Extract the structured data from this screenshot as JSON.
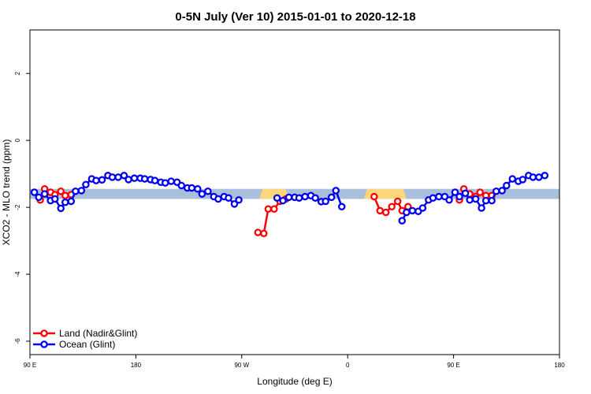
{
  "chart_data": {
    "type": "line",
    "title": "0-5N July (Ver 10)   2015-01-01 to 2020-12-18",
    "xlabel": "Longitude (deg E)",
    "ylabel": "XCO2 - MLO trend (ppm)",
    "xlim": [
      90,
      450
    ],
    "ylim": [
      -6.4,
      3.3
    ],
    "x_ticks": [
      {
        "value": 90,
        "label": "90 E"
      },
      {
        "value": 162,
        "label": "180"
      },
      {
        "value": 234,
        "label": "90 W"
      },
      {
        "value": 306,
        "label": "0"
      },
      {
        "value": 378,
        "label": "90 E"
      },
      {
        "value": 450,
        "label": "180"
      }
    ],
    "y_ticks": [
      {
        "value": 2,
        "label": "2"
      },
      {
        "value": 0,
        "label": "0"
      },
      {
        "value": -2,
        "label": "-2"
      },
      {
        "value": -4,
        "label": "-4"
      },
      {
        "value": -6,
        "label": "-6"
      }
    ],
    "reference_band": {
      "y_min": -1.75,
      "y_max": -1.45,
      "color": "#a9bfdc"
    },
    "land_markers": [
      {
        "x_min": 246,
        "x_max": 266,
        "color": "#fbd67b"
      },
      {
        "x_min": 317,
        "x_max": 346,
        "color": "#fbd67b"
      }
    ],
    "series": [
      {
        "name": "Land (Nadir&Glint)",
        "color": "#ff0000",
        "segments": [
          [
            [
              97,
              -1.78
            ],
            [
              100,
              -1.45
            ],
            [
              104,
              -1.55
            ],
            [
              107,
              -1.62
            ],
            [
              111,
              -1.52
            ],
            [
              114,
              -1.65
            ],
            [
              118,
              -1.62
            ]
          ],
          [
            [
              245,
              -2.75
            ],
            [
              249,
              -2.78
            ],
            [
              252,
              -2.05
            ],
            [
              256,
              -2.05
            ],
            [
              260,
              -1.82
            ],
            [
              264,
              -1.75
            ]
          ],
          [
            [
              324,
              -1.68
            ],
            [
              328,
              -2.1
            ],
            [
              332,
              -2.15
            ],
            [
              336,
              -1.98
            ],
            [
              340,
              -1.82
            ],
            [
              343,
              -2.1
            ],
            [
              347,
              -1.98
            ]
          ],
          [
            [
              382,
              -1.78
            ],
            [
              385,
              -1.45
            ],
            [
              389,
              -1.6
            ],
            [
              393,
              -1.68
            ],
            [
              396,
              -1.55
            ],
            [
              400,
              -1.65
            ],
            [
              404,
              -1.65
            ]
          ]
        ]
      },
      {
        "name": "Ocean (Glint)",
        "color": "#0000ee",
        "segments": [
          [
            [
              93,
              -1.55
            ],
            [
              96,
              -1.7
            ],
            [
              100,
              -1.6
            ],
            [
              104,
              -1.8
            ],
            [
              107,
              -1.75
            ],
            [
              111,
              -2.03
            ],
            [
              114,
              -1.85
            ],
            [
              118,
              -1.82
            ],
            [
              121,
              -1.52
            ],
            [
              125,
              -1.5
            ],
            [
              128,
              -1.32
            ],
            [
              132,
              -1.15
            ],
            [
              135,
              -1.2
            ],
            [
              139,
              -1.18
            ],
            [
              143,
              -1.05
            ],
            [
              146,
              -1.1
            ],
            [
              150,
              -1.1
            ],
            [
              154,
              -1.05
            ],
            [
              157,
              -1.17
            ],
            [
              161,
              -1.13
            ],
            [
              165,
              -1.13
            ],
            [
              168,
              -1.15
            ],
            [
              172,
              -1.17
            ],
            [
              175,
              -1.2
            ],
            [
              179,
              -1.25
            ],
            [
              182,
              -1.27
            ],
            [
              186,
              -1.22
            ],
            [
              190,
              -1.25
            ],
            [
              193,
              -1.35
            ],
            [
              197,
              -1.42
            ],
            [
              200,
              -1.42
            ],
            [
              204,
              -1.45
            ],
            [
              207,
              -1.6
            ],
            [
              211,
              -1.52
            ],
            [
              215,
              -1.68
            ],
            [
              218,
              -1.75
            ],
            [
              222,
              -1.68
            ],
            [
              225,
              -1.72
            ],
            [
              229,
              -1.9
            ],
            [
              232,
              -1.78
            ]
          ],
          [
            [
              258,
              -1.72
            ],
            [
              262,
              -1.8
            ],
            [
              266,
              -1.7
            ],
            [
              270,
              -1.7
            ],
            [
              273,
              -1.72
            ],
            [
              277,
              -1.68
            ],
            [
              281,
              -1.65
            ],
            [
              284,
              -1.72
            ],
            [
              288,
              -1.83
            ],
            [
              291,
              -1.82
            ],
            [
              295,
              -1.7
            ],
            [
              298,
              -1.5
            ],
            [
              302,
              -1.98
            ]
          ],
          [
            [
              343,
              -2.4
            ],
            [
              346,
              -2.15
            ],
            [
              350,
              -2.1
            ],
            [
              354,
              -2.12
            ],
            [
              357,
              -2.02
            ],
            [
              361,
              -1.78
            ],
            [
              364,
              -1.72
            ],
            [
              368,
              -1.68
            ],
            [
              372,
              -1.68
            ],
            [
              375,
              -1.78
            ],
            [
              379,
              -1.55
            ],
            [
              382,
              -1.68
            ],
            [
              386,
              -1.58
            ],
            [
              389,
              -1.78
            ],
            [
              393,
              -1.75
            ],
            [
              397,
              -2.02
            ],
            [
              400,
              -1.8
            ],
            [
              404,
              -1.8
            ],
            [
              407,
              -1.52
            ],
            [
              411,
              -1.5
            ],
            [
              414,
              -1.35
            ],
            [
              418,
              -1.15
            ],
            [
              422,
              -1.22
            ],
            [
              425,
              -1.17
            ],
            [
              429,
              -1.05
            ],
            [
              432,
              -1.1
            ],
            [
              436,
              -1.1
            ],
            [
              440,
              -1.05
            ]
          ]
        ]
      }
    ],
    "legend": {
      "position": "bottom-left",
      "entries": [
        {
          "label": "Land (Nadir&Glint)",
          "color": "#ff0000"
        },
        {
          "label": "Ocean (Glint)",
          "color": "#0000ee"
        }
      ]
    }
  }
}
